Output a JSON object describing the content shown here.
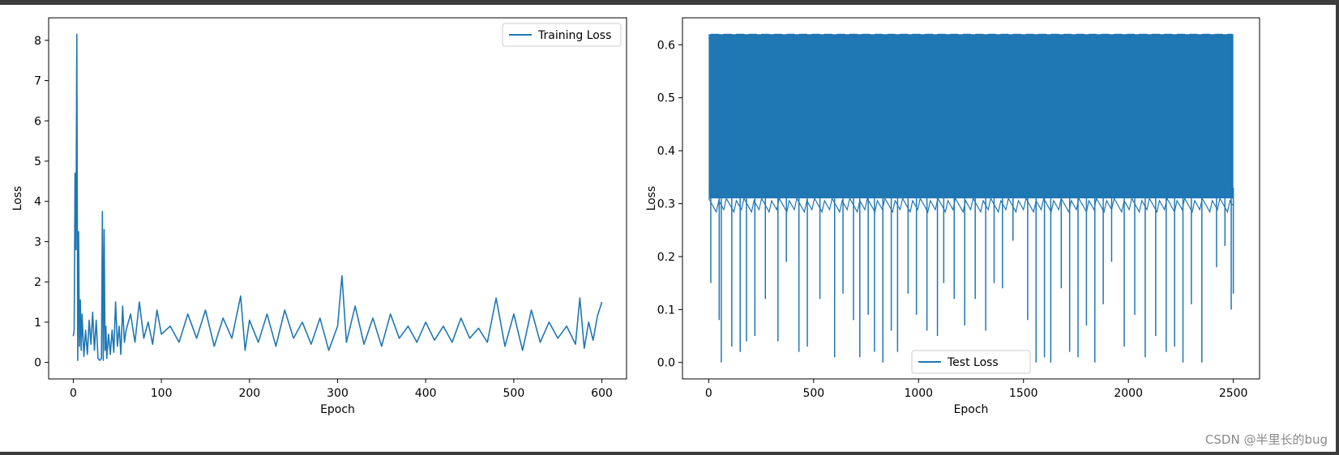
{
  "chart_data": [
    {
      "type": "line",
      "xlabel": "Epoch",
      "ylabel": "Loss",
      "xlim": [
        -28,
        628
      ],
      "ylim": [
        -0.41,
        8.56
      ],
      "xticks": [
        0,
        100,
        200,
        300,
        400,
        500,
        600
      ],
      "yticks": [
        0,
        1,
        2,
        3,
        4,
        5,
        6,
        7,
        8
      ],
      "legend_position": "upper right",
      "grid": false,
      "series": [
        {
          "name": "Training Loss",
          "color": "#1f77b4",
          "x": [
            0,
            1,
            2,
            3,
            4,
            5,
            6,
            7,
            8,
            9,
            10,
            12,
            14,
            16,
            18,
            20,
            22,
            24,
            26,
            28,
            30,
            32,
            33,
            34,
            35,
            36,
            37,
            38,
            40,
            42,
            44,
            46,
            48,
            50,
            52,
            54,
            56,
            58,
            60,
            65,
            70,
            75,
            80,
            85,
            90,
            95,
            100,
            110,
            120,
            130,
            140,
            150,
            160,
            170,
            180,
            190,
            195,
            200,
            210,
            220,
            230,
            240,
            250,
            260,
            270,
            280,
            290,
            300,
            305,
            310,
            320,
            330,
            340,
            350,
            360,
            370,
            380,
            390,
            400,
            410,
            420,
            430,
            440,
            450,
            460,
            470,
            480,
            490,
            500,
            510,
            520,
            530,
            540,
            550,
            560,
            570,
            575,
            580,
            585,
            590,
            595,
            600
          ],
          "y": [
            0.65,
            0.8,
            4.7,
            2.8,
            8.15,
            0.05,
            3.25,
            0.4,
            1.55,
            0.3,
            1.2,
            0.15,
            0.8,
            0.2,
            1.05,
            0.45,
            1.25,
            0.3,
            1.05,
            0.1,
            0.05,
            0.1,
            3.75,
            0.05,
            3.3,
            0.3,
            0.9,
            0.1,
            0.7,
            0.2,
            0.8,
            0.25,
            1.5,
            0.4,
            0.9,
            0.2,
            1.4,
            0.5,
            0.8,
            1.2,
            0.5,
            1.5,
            0.6,
            1.0,
            0.45,
            1.3,
            0.7,
            0.9,
            0.5,
            1.2,
            0.6,
            1.3,
            0.4,
            1.1,
            0.6,
            1.65,
            0.3,
            1.05,
            0.5,
            1.2,
            0.4,
            1.3,
            0.6,
            1.0,
            0.45,
            1.1,
            0.3,
            0.9,
            2.15,
            0.5,
            1.4,
            0.45,
            1.1,
            0.4,
            1.2,
            0.6,
            0.9,
            0.5,
            1.0,
            0.55,
            0.9,
            0.5,
            1.1,
            0.6,
            0.85,
            0.5,
            1.6,
            0.4,
            1.2,
            0.3,
            1.3,
            0.5,
            1.0,
            0.6,
            0.9,
            0.45,
            1.6,
            0.35,
            1.0,
            0.55,
            1.15,
            1.5
          ]
        }
      ]
    },
    {
      "type": "line",
      "xlabel": "Epoch",
      "ylabel": "Loss",
      "xlim": [
        -125,
        2625
      ],
      "ylim": [
        -0.031,
        0.651
      ],
      "xticks": [
        0,
        500,
        1000,
        1500,
        2000,
        2500
      ],
      "yticks": [
        0.0,
        0.1,
        0.2,
        0.3,
        0.4,
        0.5,
        0.6
      ],
      "legend_position": "lower center",
      "grid": false,
      "series": [
        {
          "name": "Test Loss",
          "color": "#1f77b4",
          "x_range": [
            0,
            2500
          ],
          "band": {
            "low": 0.31,
            "high": 0.62
          },
          "dips": [
            [
              10,
              0.15
            ],
            [
              50,
              0.08
            ],
            [
              60,
              0.0
            ],
            [
              110,
              0.03
            ],
            [
              150,
              0.02
            ],
            [
              180,
              0.04
            ],
            [
              220,
              0.05
            ],
            [
              270,
              0.12
            ],
            [
              330,
              0.04
            ],
            [
              370,
              0.19
            ],
            [
              430,
              0.02
            ],
            [
              470,
              0.03
            ],
            [
              530,
              0.12
            ],
            [
              600,
              0.01
            ],
            [
              640,
              0.13
            ],
            [
              690,
              0.08
            ],
            [
              720,
              0.01
            ],
            [
              760,
              0.09
            ],
            [
              790,
              0.02
            ],
            [
              830,
              0.0
            ],
            [
              870,
              0.06
            ],
            [
              900,
              0.02
            ],
            [
              950,
              0.13
            ],
            [
              990,
              0.09
            ],
            [
              1040,
              0.06
            ],
            [
              1090,
              0.05
            ],
            [
              1120,
              0.15
            ],
            [
              1170,
              0.12
            ],
            [
              1220,
              0.07
            ],
            [
              1270,
              0.12
            ],
            [
              1320,
              0.06
            ],
            [
              1360,
              0.15
            ],
            [
              1400,
              0.14
            ],
            [
              1450,
              0.23
            ],
            [
              1520,
              0.08
            ],
            [
              1560,
              0.0
            ],
            [
              1600,
              0.01
            ],
            [
              1630,
              0.0
            ],
            [
              1680,
              0.14
            ],
            [
              1720,
              0.02
            ],
            [
              1760,
              0.01
            ],
            [
              1800,
              0.07
            ],
            [
              1840,
              0.0
            ],
            [
              1880,
              0.11
            ],
            [
              1920,
              0.19
            ],
            [
              1980,
              0.03
            ],
            [
              2030,
              0.09
            ],
            [
              2080,
              0.01
            ],
            [
              2130,
              0.05
            ],
            [
              2180,
              0.02
            ],
            [
              2220,
              0.03
            ],
            [
              2260,
              0.0
            ],
            [
              2300,
              0.11
            ],
            [
              2350,
              0.0
            ],
            [
              2420,
              0.18
            ],
            [
              2460,
              0.22
            ],
            [
              2490,
              0.1
            ],
            [
              2500,
              0.13
            ]
          ]
        }
      ]
    }
  ],
  "watermark": "CSDN @半里长的bug"
}
